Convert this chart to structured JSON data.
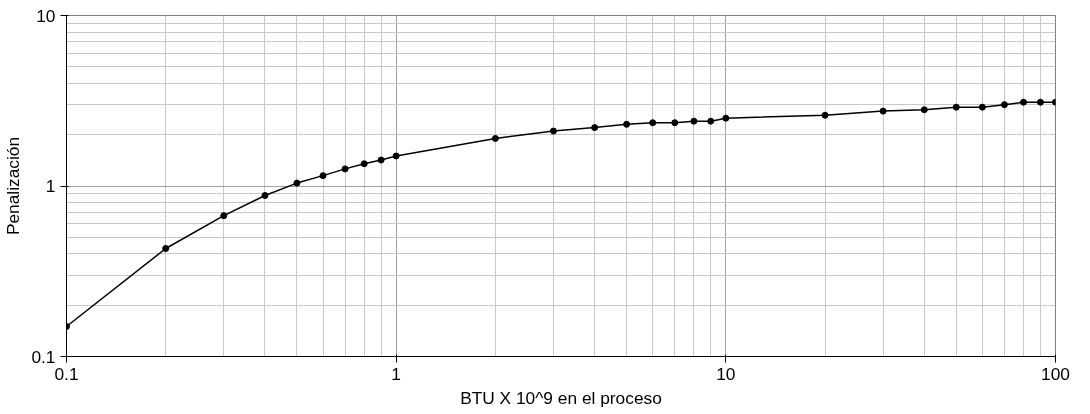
{
  "chart_data": {
    "type": "line",
    "xlabel": "BTU X 10^9 en el proceso",
    "ylabel": "Penalización",
    "x": [
      0.1,
      0.2,
      0.3,
      0.4,
      0.5,
      0.6,
      0.7,
      0.8,
      0.9,
      1,
      2,
      3,
      4,
      5,
      6,
      7,
      8,
      9,
      10,
      20,
      30,
      40,
      50,
      60,
      70,
      80,
      90,
      100
    ],
    "series": [
      {
        "color": "#000000",
        "values": [
          0.15,
          0.43,
          0.67,
          0.88,
          1.04,
          1.15,
          1.26,
          1.35,
          1.42,
          1.5,
          1.9,
          2.1,
          2.2,
          2.3,
          2.35,
          2.35,
          2.4,
          2.4,
          2.5,
          2.6,
          2.75,
          2.8,
          2.9,
          2.9,
          3.0,
          3.1,
          3.1,
          3.1
        ]
      }
    ],
    "xlim": [
      0.1,
      100
    ],
    "ylim": [
      0.1,
      10
    ],
    "xticks": [
      0.1,
      1,
      10,
      100
    ],
    "yticks": [
      0.1,
      1,
      10
    ],
    "log": "xy",
    "grid": true,
    "marker": "circle",
    "line_style": "solid"
  }
}
